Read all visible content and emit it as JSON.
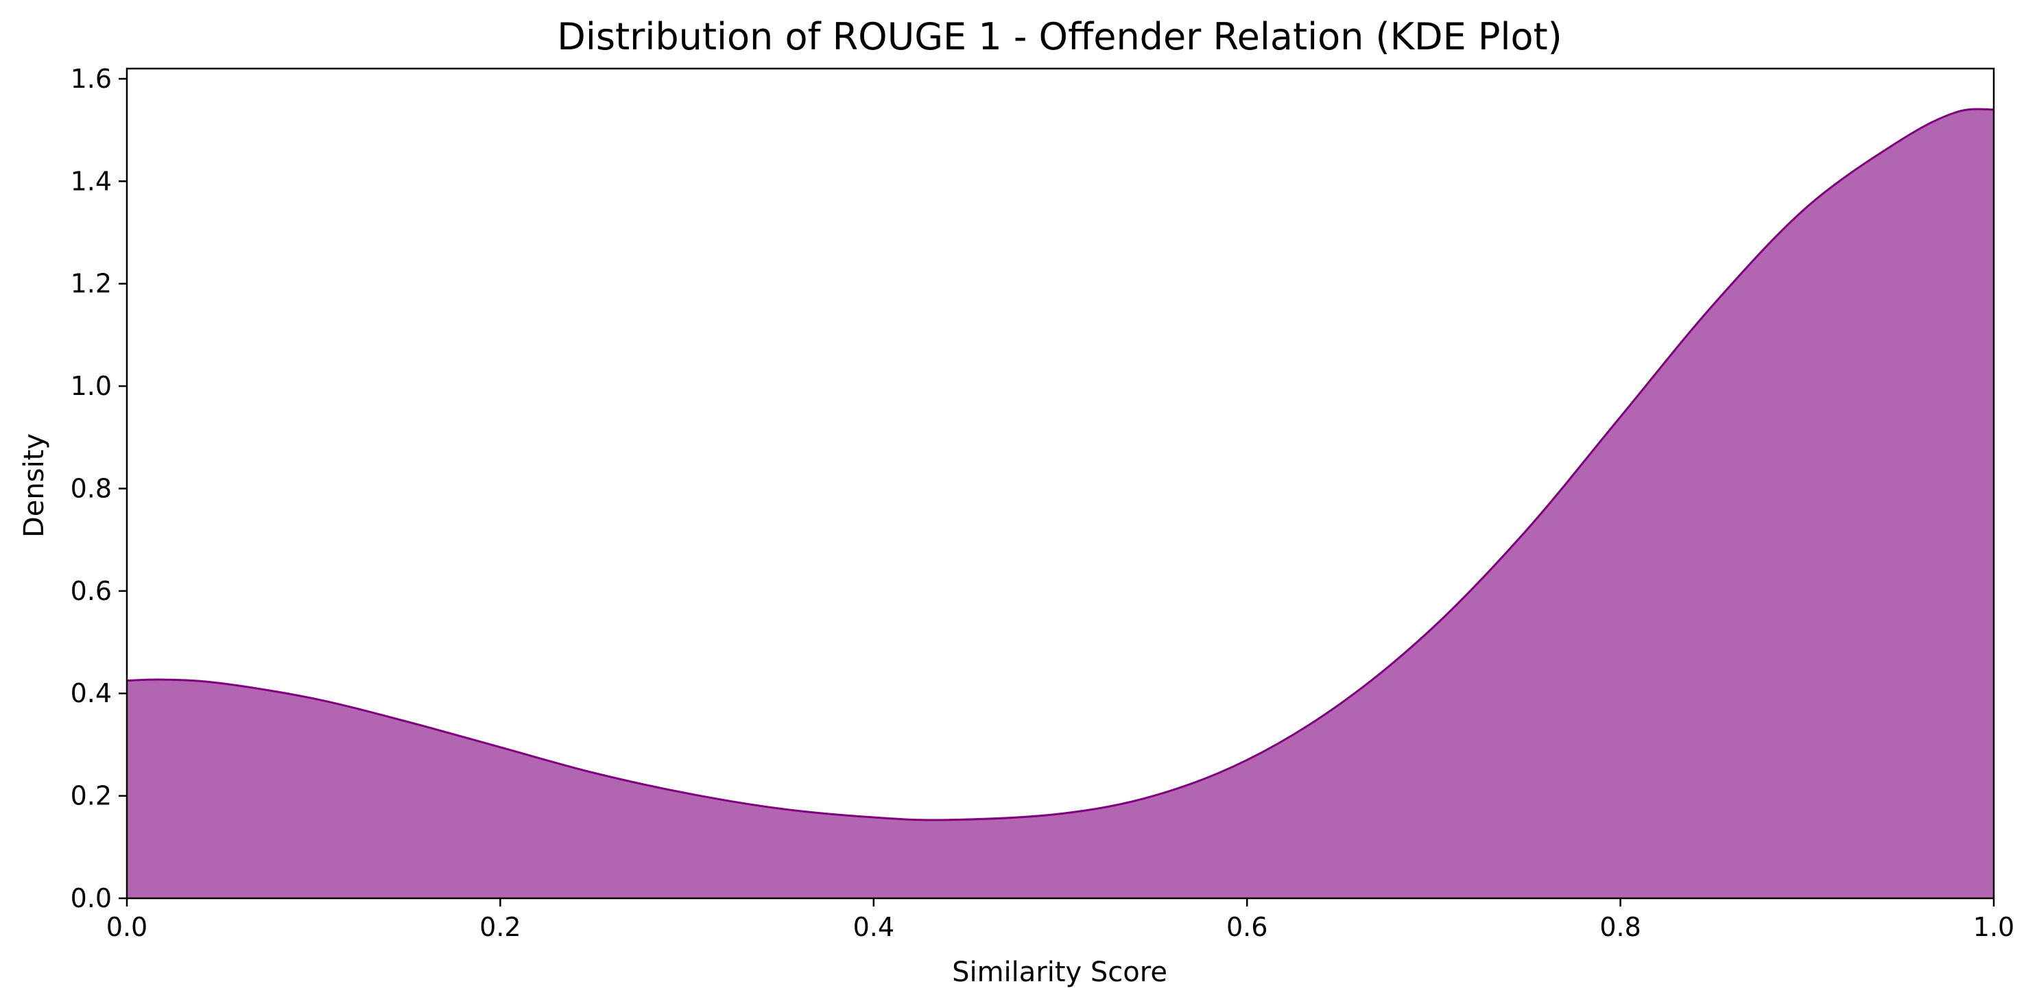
{
  "chart_data": {
    "type": "area",
    "title": "Distribution of ROUGE 1 - Offender Relation (KDE Plot)",
    "xlabel": "Similarity Score",
    "ylabel": "Density",
    "xlim": [
      0.0,
      1.0
    ],
    "ylim": [
      0.0,
      1.62
    ],
    "xticks": [
      0.0,
      0.2,
      0.4,
      0.6,
      0.8,
      1.0
    ],
    "xtick_labels": [
      "0.0",
      "0.2",
      "0.4",
      "0.6",
      "0.8",
      "1.0"
    ],
    "yticks": [
      0.0,
      0.2,
      0.4,
      0.6,
      0.8,
      1.0,
      1.2,
      1.4,
      1.6
    ],
    "ytick_labels": [
      "0.0",
      "0.2",
      "0.4",
      "0.6",
      "0.8",
      "1.0",
      "1.2",
      "1.4",
      "1.6"
    ],
    "grid": false,
    "fill_color": "#b266b2",
    "line_color": "#800080",
    "series": [
      {
        "x": [
          0.0,
          0.02,
          0.05,
          0.1,
          0.15,
          0.2,
          0.25,
          0.3,
          0.35,
          0.4,
          0.44,
          0.5,
          0.55,
          0.6,
          0.65,
          0.7,
          0.75,
          0.8,
          0.85,
          0.9,
          0.95,
          0.98,
          1.0
        ],
        "y": [
          0.425,
          0.427,
          0.42,
          0.39,
          0.345,
          0.295,
          0.245,
          0.205,
          0.175,
          0.158,
          0.153,
          0.165,
          0.2,
          0.27,
          0.38,
          0.53,
          0.72,
          0.94,
          1.16,
          1.35,
          1.48,
          1.535,
          1.54
        ]
      }
    ]
  }
}
